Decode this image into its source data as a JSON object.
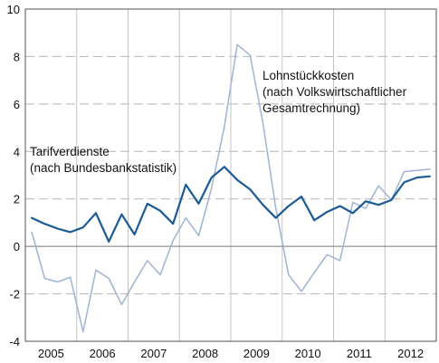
{
  "chart_data": {
    "type": "line",
    "title": "",
    "xlabel": "",
    "ylabel": "",
    "ylim": [
      -4,
      10
    ],
    "y_ticks": [
      "10",
      "8",
      "6",
      "4",
      "2",
      "0",
      "-2",
      "-4"
    ],
    "x_ticks": [
      "2005",
      "2006",
      "2007",
      "2008",
      "2009",
      "2010",
      "2011",
      "2012"
    ],
    "grid": "dashed horizontal gridlines, solid vertical year separators",
    "quarters": [
      "2005Q1",
      "2005Q2",
      "2005Q3",
      "2005Q4",
      "2006Q1",
      "2006Q2",
      "2006Q3",
      "2006Q4",
      "2007Q1",
      "2007Q2",
      "2007Q3",
      "2007Q4",
      "2008Q1",
      "2008Q2",
      "2008Q3",
      "2008Q4",
      "2009Q1",
      "2009Q2",
      "2009Q3",
      "2009Q4",
      "2010Q1",
      "2010Q2",
      "2010Q3",
      "2010Q4",
      "2011Q1",
      "2011Q2",
      "2011Q3",
      "2011Q4",
      "2012Q1",
      "2012Q2",
      "2012Q3",
      "2012Q4"
    ],
    "series": [
      {
        "name": "Tarifverdienste",
        "annotation": [
          "Tarifverdienste",
          "(nach Bundesbankstatistik)"
        ],
        "color": "#1a5b96",
        "values": [
          1.2,
          0.95,
          0.75,
          0.6,
          0.8,
          1.4,
          0.2,
          1.35,
          0.5,
          1.8,
          1.5,
          0.95,
          2.6,
          1.8,
          2.9,
          3.35,
          2.8,
          2.4,
          1.75,
          1.2,
          1.7,
          2.1,
          1.1,
          1.45,
          1.7,
          1.4,
          1.9,
          1.75,
          1.95,
          2.7,
          2.9,
          2.95
        ]
      },
      {
        "name": "Lohnstückkosten",
        "annotation": [
          "Lohnstückkosten",
          "(nach Volkswirtschaftlicher",
          "Gesamtrechnung)"
        ],
        "color": "#9fb3d4",
        "values": [
          0.6,
          -1.35,
          -1.5,
          -1.3,
          -3.6,
          -1.0,
          -1.35,
          -2.45,
          -1.5,
          -0.6,
          -1.2,
          0.25,
          1.2,
          0.45,
          2.45,
          5.05,
          8.5,
          8.05,
          5.2,
          1.6,
          -1.2,
          -1.9,
          -1.1,
          -0.35,
          -0.6,
          1.85,
          1.6,
          2.55,
          1.95,
          3.15,
          3.2,
          3.25
        ]
      }
    ]
  }
}
